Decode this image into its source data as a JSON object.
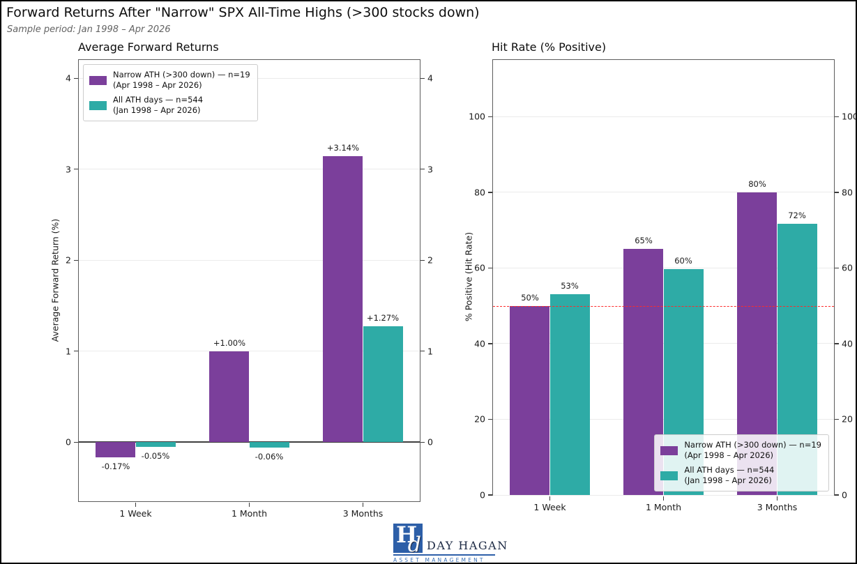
{
  "header": {
    "title": "Forward Returns After \"Narrow\" SPX All-Time Highs (>300 stocks down)",
    "subtitle": "Sample period: Jan 1998 – Apr 2026"
  },
  "colors": {
    "narrow_purple": "#7b3f9b",
    "all_teal": "#2eaba6",
    "ref_line_red": "#fd2b2b",
    "grid": "#ebebeb",
    "spine": "#5c5c5c",
    "zero_line": "#3f3f3f",
    "logo_blue": "#2d5fa8",
    "logo_navy": "#1e2b45",
    "logo_sub_blue": "#3a70b5"
  },
  "chart_data": [
    {
      "type": "bar",
      "title": "Average Forward Returns",
      "ylabel": "Average Forward Return (%)",
      "categories": [
        "1 Week",
        "1 Month",
        "3 Months"
      ],
      "series": [
        {
          "name": "Narrow ATH (>300 down) — n=19",
          "period": "(Apr 1998 – Apr 2026)",
          "color": "#7b3f9b",
          "values": [
            -0.17,
            1.0,
            3.14
          ],
          "labels": [
            "-0.17%",
            "+1.00%",
            "+3.14%"
          ]
        },
        {
          "name": "All ATH days — n=544",
          "period": "(Jan 1998 – Apr 2026)",
          "color": "#2eaba6",
          "values": [
            -0.05,
            -0.06,
            1.27
          ],
          "labels": [
            "-0.05%",
            "-0.06%",
            "+1.27%"
          ]
        }
      ],
      "ylim": [
        -0.65,
        4.2
      ],
      "yticks": [
        0,
        1,
        2,
        3,
        4
      ],
      "grid": true,
      "zero_line": true,
      "ref_line": null,
      "legend_position": "top-left"
    },
    {
      "type": "bar",
      "title": "Hit Rate (% Positive)",
      "ylabel": "% Positive (Hit Rate)",
      "categories": [
        "1 Week",
        "1 Month",
        "3 Months"
      ],
      "series": [
        {
          "name": "Narrow ATH (>300 down) — n=19",
          "period": "(Apr 1998 – Apr 2026)",
          "color": "#7b3f9b",
          "values": [
            50,
            65,
            80
          ],
          "labels": [
            "50%",
            "65%",
            "80%"
          ]
        },
        {
          "name": "All ATH days — n=544",
          "period": "(Jan 1998 – Apr 2026)",
          "color": "#2eaba6",
          "values": [
            53,
            59.7,
            71.6
          ],
          "labels": [
            "53%",
            "60%",
            "72%"
          ]
        }
      ],
      "ylim": [
        0,
        115
      ],
      "yticks": [
        0,
        20,
        40,
        60,
        80,
        100
      ],
      "grid": true,
      "zero_line": false,
      "ref_line": 50,
      "legend_position": "bottom-right"
    }
  ],
  "logo": {
    "name": "DAY HAGAN",
    "subtitle": "ASSET MANAGEMENT",
    "monogram_h": "H",
    "monogram_d": "d"
  }
}
